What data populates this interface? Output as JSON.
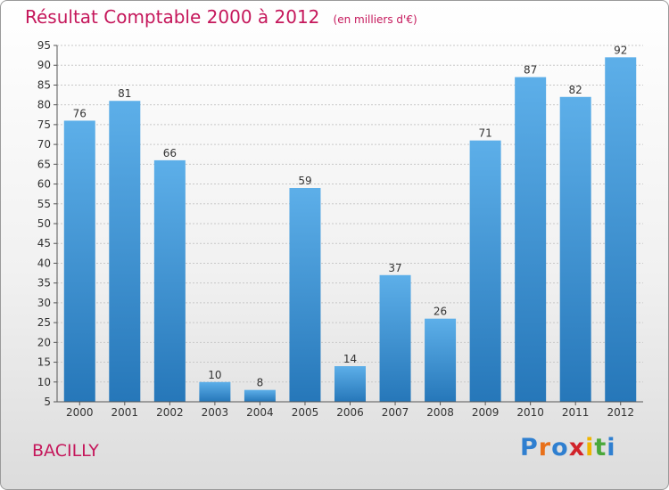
{
  "title": "Résultat Comptable 2000 à 2012",
  "subtitle": "(en milliers d'€)",
  "commune": "BACILLY",
  "logo": {
    "letters": [
      "P",
      "r",
      "o",
      "x",
      "i",
      "t",
      "i"
    ],
    "colors": [
      "#2f7fd0",
      "#e8701a",
      "#2f7fd0",
      "#d1232a",
      "#f0b400",
      "#4aa83a",
      "#2f7fd0"
    ]
  },
  "colors": {
    "title": "#c5175b",
    "bar_light": "#5dafe9",
    "bar_dark": "#2677b9",
    "axis": "#555555",
    "grid": "#c8c8c8",
    "label": "#333333"
  },
  "chart_data": {
    "type": "bar",
    "title": "Résultat Comptable 2000 à 2012",
    "subtitle": "(en milliers d'€)",
    "xlabel": "",
    "ylabel": "",
    "categories": [
      "2000",
      "2001",
      "2002",
      "2003",
      "2004",
      "2005",
      "2006",
      "2007",
      "2008",
      "2009",
      "2010",
      "2011",
      "2012"
    ],
    "values": [
      76,
      81,
      66,
      10,
      8,
      59,
      14,
      37,
      26,
      71,
      87,
      82,
      92
    ],
    "ylim": [
      5,
      95
    ],
    "yticks": [
      5,
      10,
      15,
      20,
      25,
      30,
      35,
      40,
      45,
      50,
      55,
      60,
      65,
      70,
      75,
      80,
      85,
      90,
      95
    ],
    "grid": true,
    "legend": "none"
  }
}
